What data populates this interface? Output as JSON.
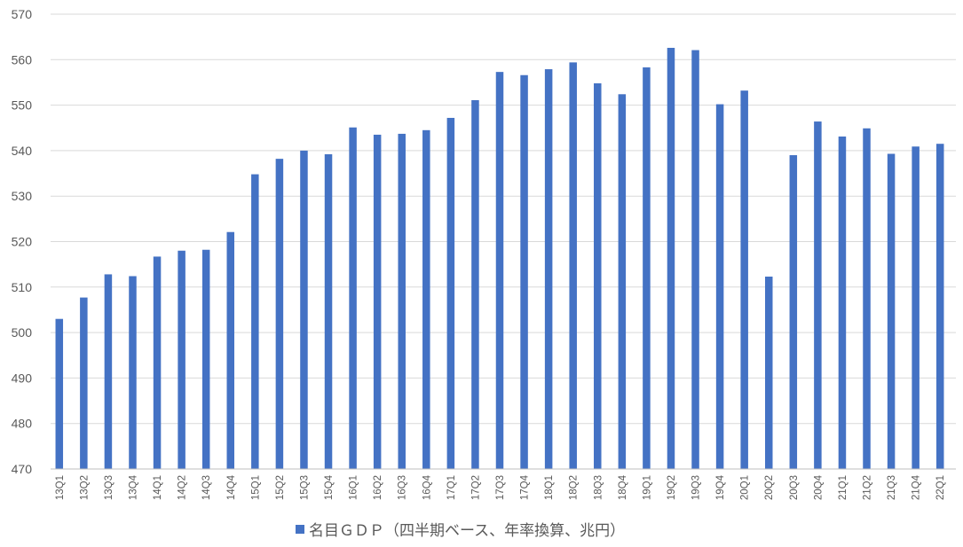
{
  "chart_data": {
    "type": "bar",
    "categories": [
      "13Q1",
      "13Q2",
      "13Q3",
      "13Q4",
      "14Q1",
      "14Q2",
      "14Q3",
      "14Q4",
      "15Q1",
      "15Q2",
      "15Q3",
      "15Q4",
      "16Q1",
      "16Q2",
      "16Q3",
      "16Q4",
      "17Q1",
      "17Q2",
      "17Q3",
      "17Q4",
      "18Q1",
      "18Q2",
      "18Q3",
      "18Q4",
      "19Q1",
      "19Q2",
      "19Q3",
      "19Q4",
      "20Q1",
      "20Q2",
      "20Q3",
      "20Q4",
      "21Q1",
      "21Q2",
      "21Q3",
      "21Q4",
      "22Q1"
    ],
    "series": [
      {
        "name": "名目ＧＤＰ（四半期ベース、年率換算、兆円）",
        "color": "#4472c4",
        "values": [
          503.0,
          507.7,
          512.8,
          512.4,
          516.7,
          518.0,
          518.2,
          522.1,
          534.8,
          538.2,
          540.0,
          539.2,
          545.1,
          543.5,
          543.7,
          544.5,
          547.2,
          551.1,
          557.3,
          556.6,
          557.9,
          559.4,
          554.8,
          552.4,
          558.3,
          562.6,
          562.1,
          550.2,
          553.2,
          512.3,
          539.0,
          546.4,
          543.1,
          544.9,
          539.3,
          540.9,
          541.5
        ]
      }
    ],
    "title": "",
    "xlabel": "",
    "ylabel": "",
    "ylim": [
      470,
      570
    ],
    "yticks": [
      "470",
      "480",
      "490",
      "500",
      "510",
      "520",
      "530",
      "540",
      "550",
      "560",
      "570"
    ],
    "grid": true,
    "legend_position": "bottom",
    "gridline_color": "#d9d9d9",
    "text_color": "#595959"
  }
}
